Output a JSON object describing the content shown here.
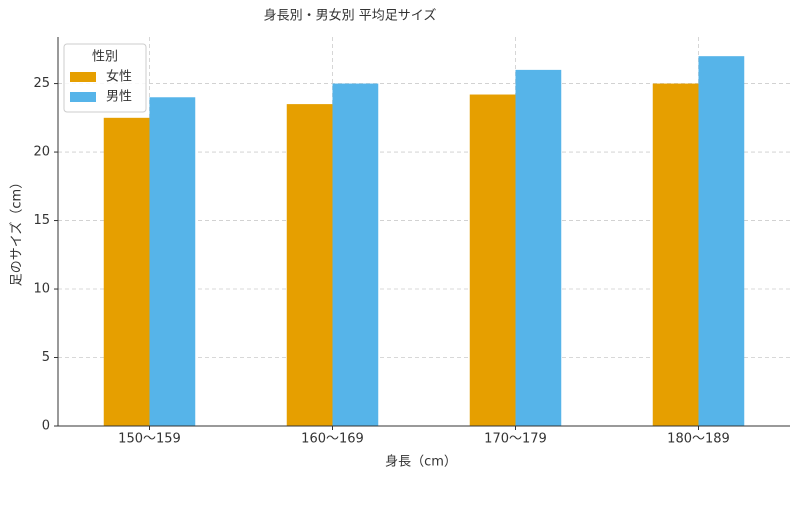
{
  "chart_data": {
    "type": "grouped_bar",
    "title": "身長別・男女別 平均足サイズ",
    "x_label": "身長（cm）",
    "y_label": "足のサイズ（cm）",
    "categories": [
      "150〜159",
      "160〜169",
      "170〜179",
      "180〜189"
    ],
    "series": [
      {
        "name": "女性",
        "color": "#e69f00",
        "values": [
          22.5,
          23.5,
          24.2,
          25
        ]
      },
      {
        "name": "男性",
        "color": "#56b4e9",
        "values": [
          24,
          25,
          26,
          27
        ]
      }
    ],
    "legend_title": "性別",
    "legend_position": "upper left",
    "ylim": [
      0,
      28.4
    ],
    "yticks": [
      0,
      5,
      10,
      15,
      20,
      25
    ],
    "grid": true
  }
}
